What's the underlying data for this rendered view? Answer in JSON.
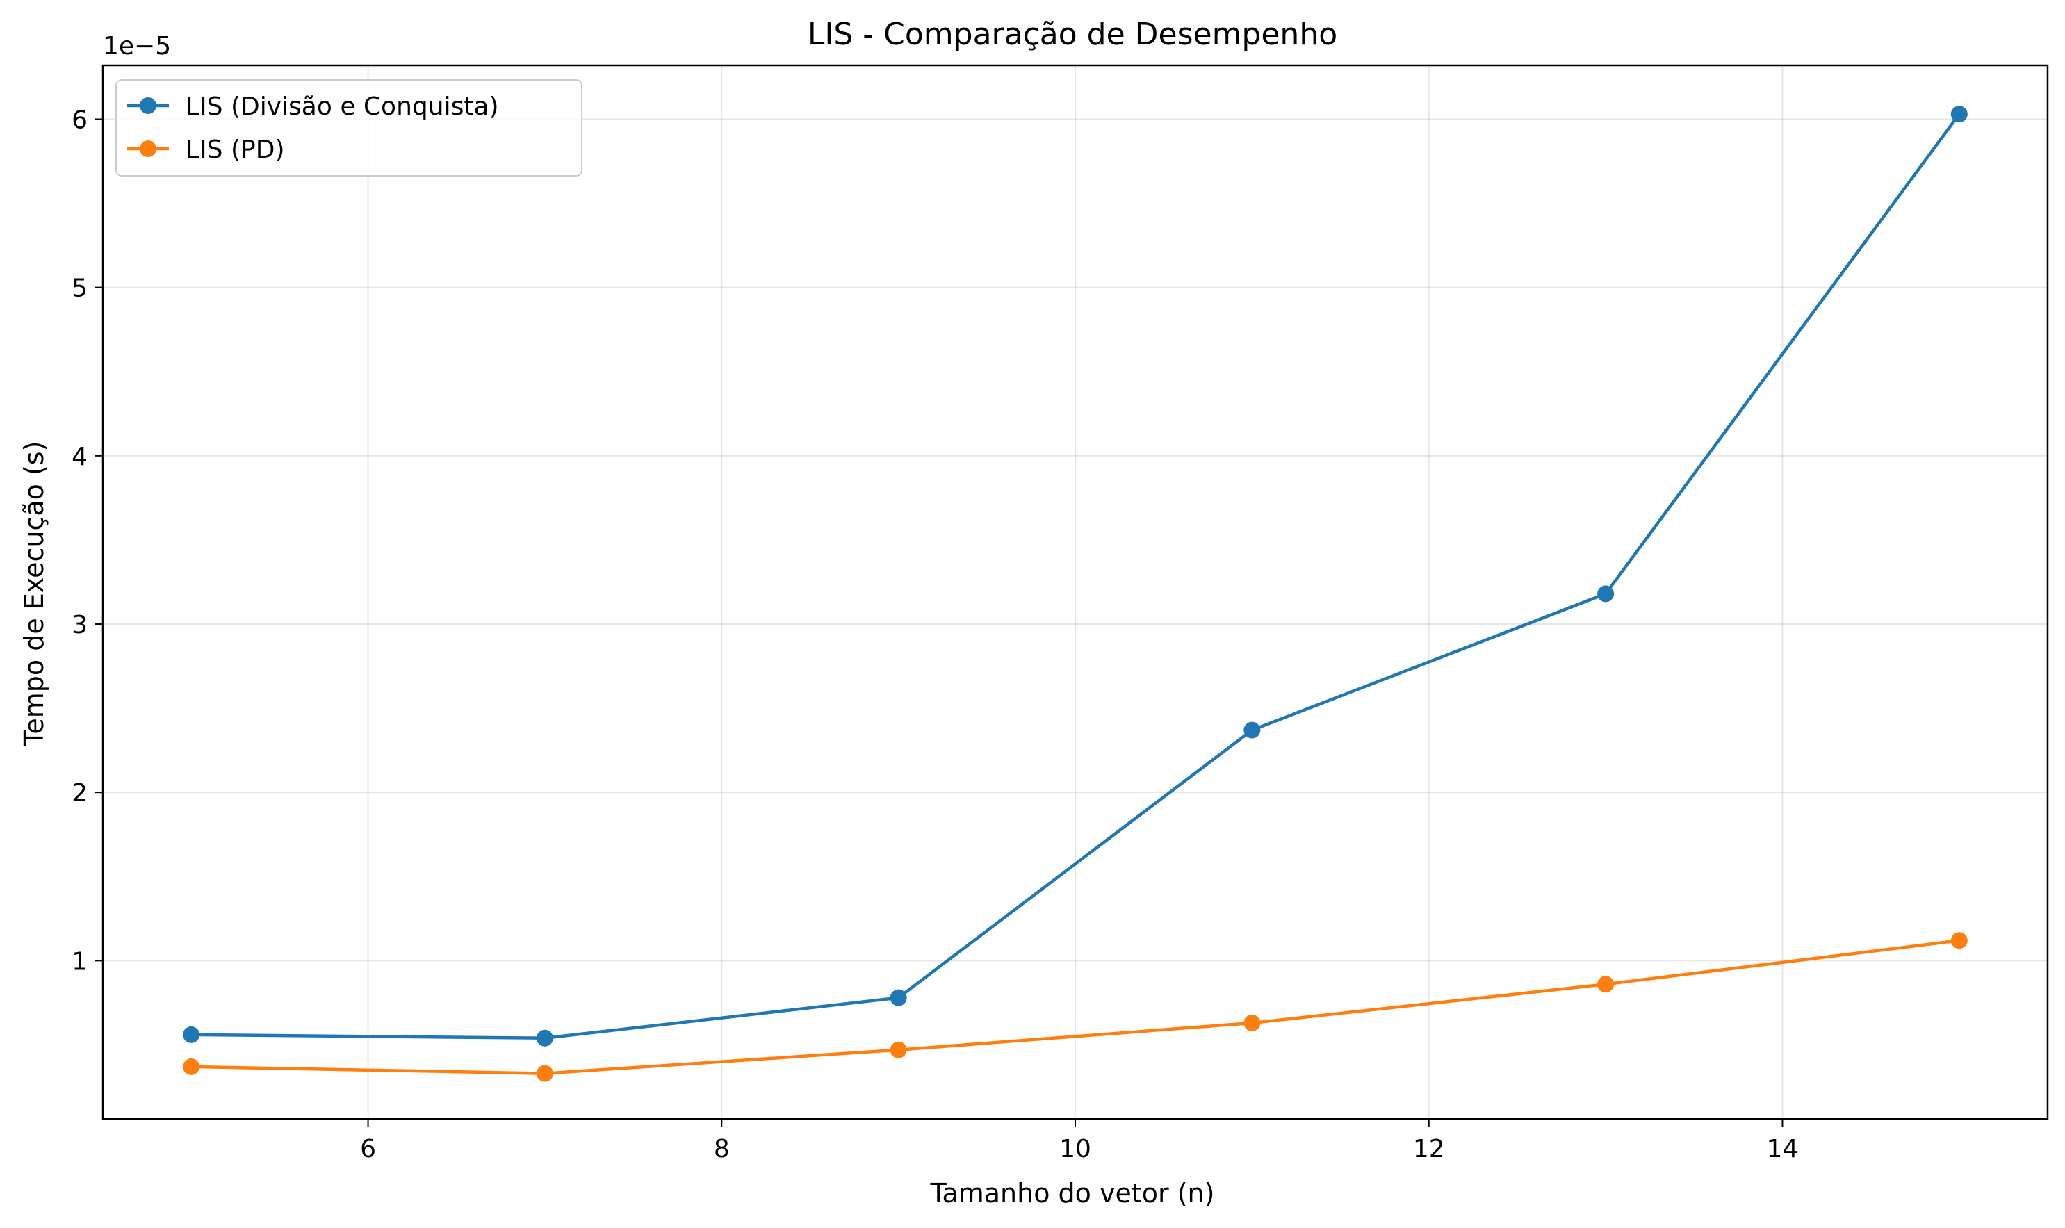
{
  "chart_data": {
    "type": "line",
    "title": "LIS - Comparação de Desempenho",
    "xlabel": "Tamanho do vetor (n)",
    "ylabel": "Tempo de Execução (s)",
    "y_offset_label": "1e−5",
    "y_scale_exponent": -5,
    "x": [
      5,
      7,
      9,
      11,
      13,
      15
    ],
    "xlim": [
      4.5,
      15.5
    ],
    "ylim": [
      0.06,
      6.32
    ],
    "x_ticks": [
      6,
      8,
      10,
      12,
      14
    ],
    "y_ticks": [
      1,
      2,
      3,
      4,
      5,
      6
    ],
    "grid": true,
    "legend_position": "upper-left",
    "series": [
      {
        "name": "LIS (Divisão e Conquista)",
        "color": "#1f77b4",
        "values": [
          0.56,
          0.54,
          0.78,
          2.37,
          3.18,
          6.03
        ]
      },
      {
        "name": "LIS (PD)",
        "color": "#ff7f0e",
        "values": [
          0.37,
          0.33,
          0.47,
          0.63,
          0.86,
          1.12
        ]
      }
    ]
  }
}
